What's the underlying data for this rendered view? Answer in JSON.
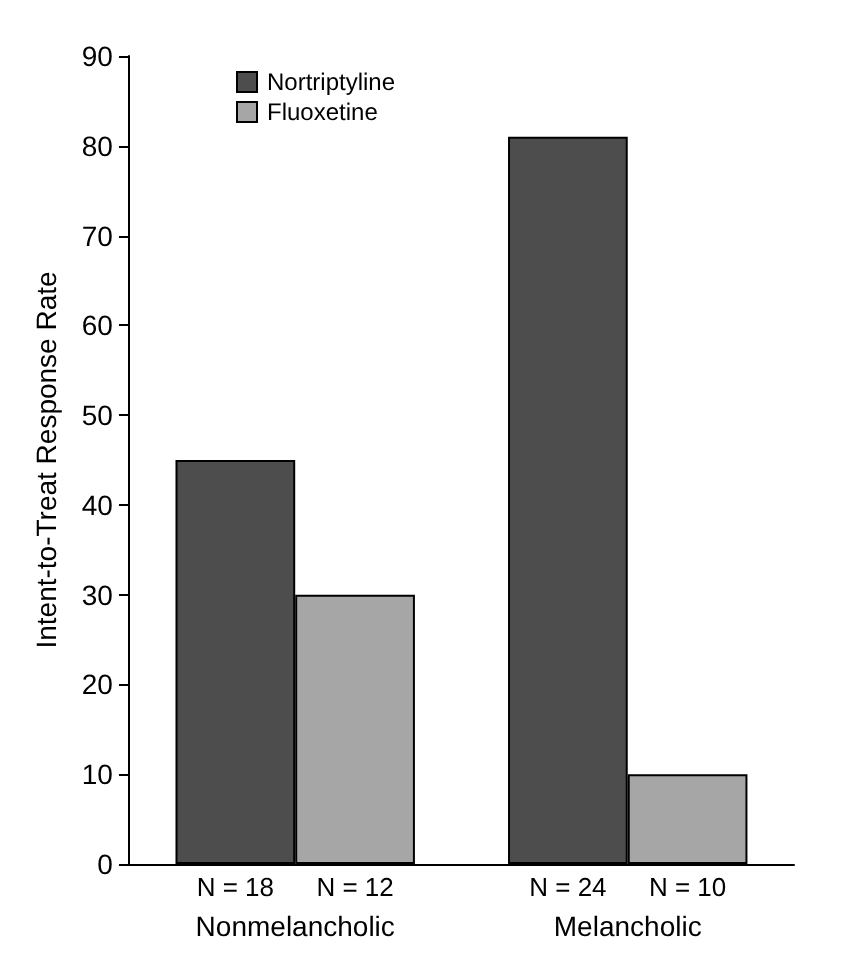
{
  "chart_data": {
    "type": "bar",
    "ylabel": "Intent-to-Treat Response Rate",
    "categories": [
      "Nonmelancholic",
      "Melancholic"
    ],
    "series": [
      {
        "name": "Nortriptyline",
        "color": "#4d4d4d",
        "values": [
          45,
          81
        ]
      },
      {
        "name": "Fluoxetine",
        "color": "#a6a6a6",
        "values": [
          30,
          10
        ]
      }
    ],
    "annotations": [
      "N = 18",
      "N = 12",
      "N = 24",
      "N = 10"
    ],
    "ylim": [
      0,
      90
    ],
    "yticks": [
      0,
      10,
      20,
      30,
      40,
      50,
      60,
      70,
      80,
      90
    ],
    "grid": false,
    "legend": "top left"
  }
}
